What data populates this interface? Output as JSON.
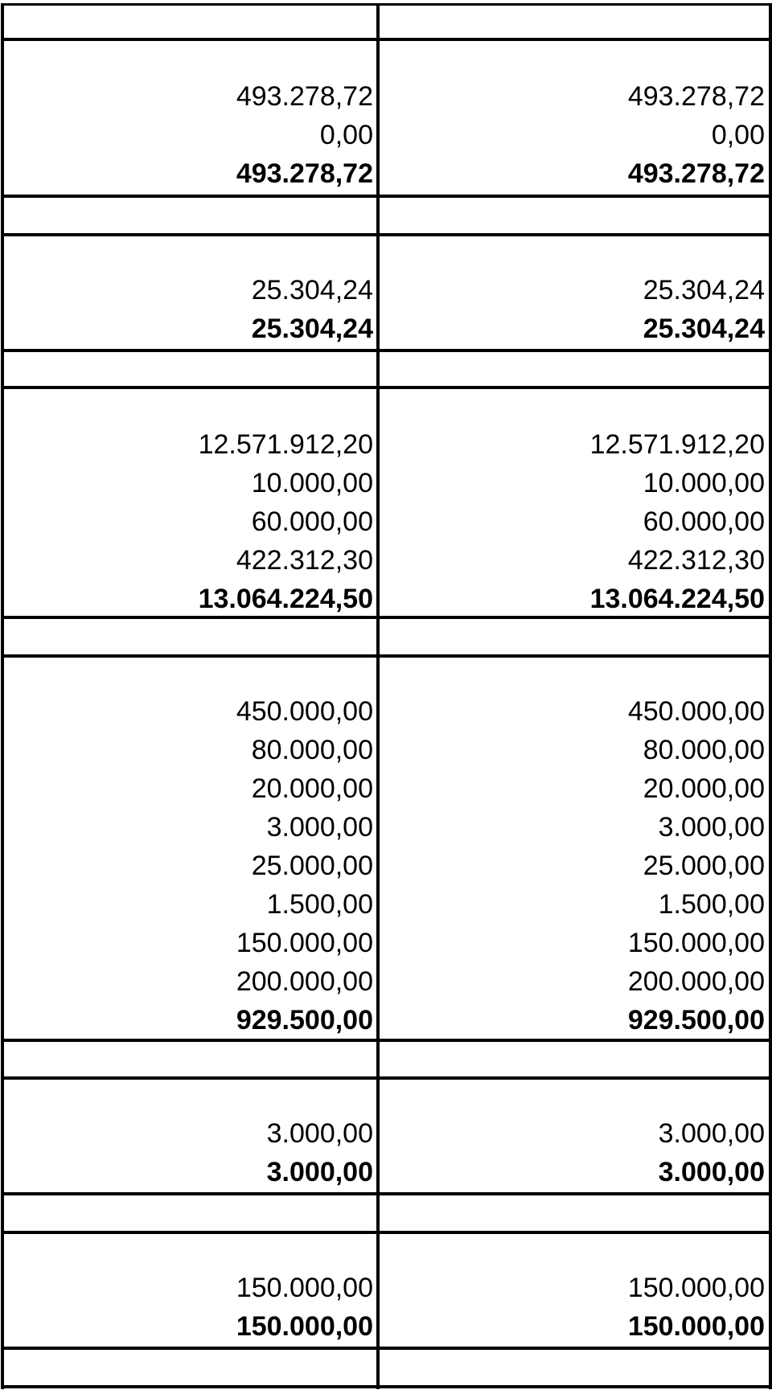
{
  "sections": [
    {
      "rows": [
        {
          "left": "493.278,72",
          "right": "493.278,72",
          "bold": false
        },
        {
          "left": "0,00",
          "right": "0,00",
          "bold": false
        },
        {
          "left": "493.278,72",
          "right": "493.278,72",
          "bold": true
        }
      ]
    },
    {
      "rows": [
        {
          "left": "25.304,24",
          "right": "25.304,24",
          "bold": false
        },
        {
          "left": "25.304,24",
          "right": "25.304,24",
          "bold": true
        }
      ]
    },
    {
      "rows": [
        {
          "left": "12.571.912,20",
          "right": "12.571.912,20",
          "bold": false
        },
        {
          "left": "10.000,00",
          "right": "10.000,00",
          "bold": false
        },
        {
          "left": "60.000,00",
          "right": "60.000,00",
          "bold": false
        },
        {
          "left": "422.312,30",
          "right": "422.312,30",
          "bold": false
        },
        {
          "left": "13.064.224,50",
          "right": "13.064.224,50",
          "bold": true
        }
      ]
    },
    {
      "rows": [
        {
          "left": "450.000,00",
          "right": "450.000,00",
          "bold": false
        },
        {
          "left": "80.000,00",
          "right": "80.000,00",
          "bold": false
        },
        {
          "left": "20.000,00",
          "right": "20.000,00",
          "bold": false
        },
        {
          "left": "3.000,00",
          "right": "3.000,00",
          "bold": false
        },
        {
          "left": "25.000,00",
          "right": "25.000,00",
          "bold": false
        },
        {
          "left": "1.500,00",
          "right": "1.500,00",
          "bold": false
        },
        {
          "left": "150.000,00",
          "right": "150.000,00",
          "bold": false
        },
        {
          "left": "200.000,00",
          "right": "200.000,00",
          "bold": false
        },
        {
          "left": "929.500,00",
          "right": "929.500,00",
          "bold": true
        }
      ]
    },
    {
      "rows": [
        {
          "left": "3.000,00",
          "right": "3.000,00",
          "bold": false
        },
        {
          "left": "3.000,00",
          "right": "3.000,00",
          "bold": true
        }
      ]
    },
    {
      "rows": [
        {
          "left": "150.000,00",
          "right": "150.000,00",
          "bold": false
        },
        {
          "left": "150.000,00",
          "right": "150.000,00",
          "bold": true
        }
      ]
    }
  ]
}
